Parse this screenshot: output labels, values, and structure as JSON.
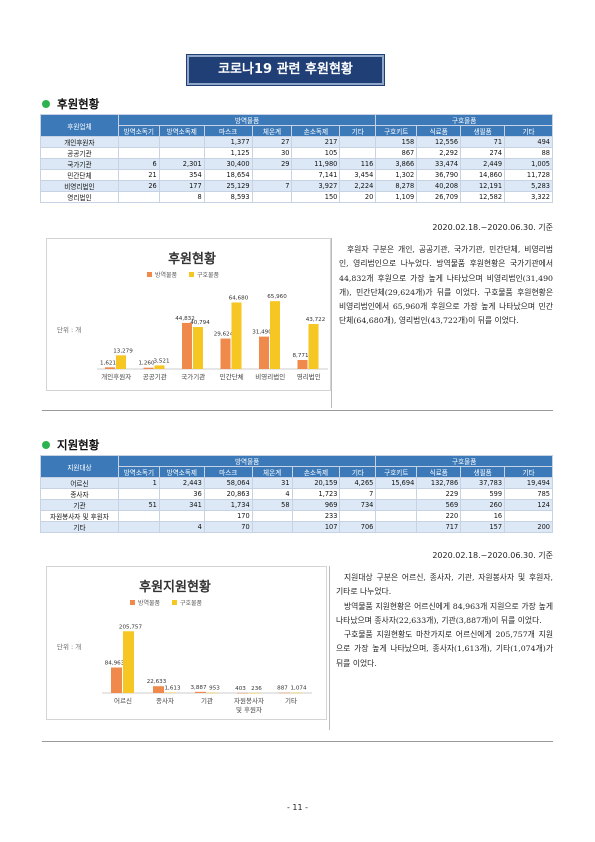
{
  "title": "코로나19 관련 후원현황",
  "sections": [
    {
      "heading": "후원현황",
      "table": {
        "corner": "후원업체",
        "group1": "방역물품",
        "group2": "구호물품",
        "cols": [
          "방역소독기",
          "방역소독제",
          "마스크",
          "체온계",
          "손소독제",
          "기타",
          "구호키트",
          "식료품",
          "생필품",
          "기타"
        ],
        "rows": [
          {
            "label": "개인후원자",
            "cells": [
              "",
              "",
              "1,377",
              "27",
              "217",
              "",
              "158",
              "12,556",
              "71",
              "494"
            ]
          },
          {
            "label": "공공기관",
            "cells": [
              "",
              "",
              "1,125",
              "30",
              "105",
              "",
              "867",
              "2,292",
              "274",
              "88"
            ]
          },
          {
            "label": "국가기관",
            "cells": [
              "6",
              "2,301",
              "30,400",
              "29",
              "11,980",
              "116",
              "3,866",
              "33,474",
              "2,449",
              "1,005"
            ]
          },
          {
            "label": "민간단체",
            "cells": [
              "21",
              "354",
              "18,654",
              "",
              "7,141",
              "3,454",
              "1,302",
              "36,790",
              "14,860",
              "11,728"
            ]
          },
          {
            "label": "비영리법인",
            "cells": [
              "26",
              "177",
              "25,129",
              "7",
              "3,927",
              "2,224",
              "8,278",
              "40,208",
              "12,191",
              "5,283"
            ]
          },
          {
            "label": "영리법인",
            "cells": [
              "",
              "8",
              "8,593",
              "",
              "150",
              "20",
              "1,109",
              "26,709",
              "12,582",
              "3,322"
            ]
          }
        ]
      },
      "base_date": "2020.02.18.~2020.06.30. 기준",
      "description": [
        "후원자 구분은 개인, 공공기관, 국가기관, 민간단체, 비영리법인, 영리법인으로 나누었다. 방역물품 후원현황은 국가기관에서 44,832개 후원으로 가장 높게 나타났으며 비영리법인(31,490개), 민간단체(29,624개)가 뒤를 이었다. 구호물품 후원현황은 비영리법인에서 65,960개 후원으로 가장 높게 나타났으며 민간단체(64,680개), 영리법인(43,722개)이 뒤를 이었다."
      ]
    },
    {
      "heading": "지원현황",
      "table": {
        "corner": "지원대상",
        "group1": "방역물품",
        "group2": "구호물품",
        "cols": [
          "방역소독기",
          "방역소독제",
          "마스크",
          "체온계",
          "손소독제",
          "기타",
          "구호키트",
          "식료품",
          "생필품",
          "기타"
        ],
        "rows": [
          {
            "label": "어르신",
            "cells": [
              "1",
              "2,443",
              "58,064",
              "31",
              "20,159",
              "4,265",
              "15,694",
              "132,786",
              "37,783",
              "19,494"
            ]
          },
          {
            "label": "종사자",
            "cells": [
              "",
              "36",
              "20,863",
              "4",
              "1,723",
              "7",
              "",
              "229",
              "599",
              "785"
            ]
          },
          {
            "label": "기관",
            "cells": [
              "51",
              "341",
              "1,734",
              "58",
              "969",
              "734",
              "",
              "569",
              "260",
              "124"
            ]
          },
          {
            "label": "자원봉사자 및 후원자",
            "cells": [
              "",
              "",
              "170",
              "",
              "233",
              "",
              "",
              "220",
              "16",
              ""
            ]
          },
          {
            "label": "기타",
            "cells": [
              "",
              "4",
              "70",
              "",
              "107",
              "706",
              "",
              "717",
              "157",
              "200"
            ]
          }
        ]
      },
      "base_date": "2020.02.18.~2020.06.30. 기준",
      "description": [
        "지원대상 구분은 어르신, 종사자, 기관, 자원봉사자 및 후원자, 기타로 나누었다.",
        "방역물품 지원현황은 어르신에게 84,963개 지원으로 가장 높게 나타났으며 종사자(22,633개), 기관(3,887개)이 뒤를 이었다.",
        "구호물품 지원현황도 마찬가지로 어르신에게 205,757개 지원으로 가장 높게 나타났으며, 종사자(1,613개), 기타(1,074개)가 뒤를 이었다."
      ]
    }
  ],
  "chart_data": [
    {
      "type": "bar",
      "title": "후원현황",
      "ylabel": "단위 : 개",
      "categories": [
        "개인후원자",
        "공공기관",
        "국가기관",
        "민간단체",
        "비영리법인",
        "영리법인"
      ],
      "series": [
        {
          "name": "방역물품",
          "values": [
            1621,
            1260,
            44832,
            29624,
            31490,
            8771
          ],
          "labels": [
            "1,621",
            "1,260",
            "44,832",
            "29,624",
            "31,490",
            "8,771"
          ],
          "color": "#ef8a4c"
        },
        {
          "name": "구호물품",
          "values": [
            13279,
            3521,
            40794,
            64680,
            65960,
            43722
          ],
          "labels": [
            "13,279",
            "3,521",
            "40,794",
            "64,680",
            "65,960",
            "43,722"
          ],
          "color": "#f6c623"
        }
      ],
      "ylim": [
        0,
        70000
      ]
    },
    {
      "type": "bar",
      "title": "후원지원현황",
      "ylabel": "단위 : 개",
      "categories": [
        "어르신",
        "종사자",
        "기관",
        "자원봉사자|및 후원자",
        "기타"
      ],
      "series": [
        {
          "name": "방역물품",
          "values": [
            84963,
            22633,
            3887,
            403,
            887
          ],
          "labels": [
            "84,963",
            "22,633",
            "3,887",
            "403",
            "887"
          ],
          "color": "#ef8a4c"
        },
        {
          "name": "구호물품",
          "values": [
            205757,
            1613,
            953,
            236,
            1074
          ],
          "labels": [
            "205,757",
            "1,613",
            "953",
            "236",
            "1,074"
          ],
          "color": "#f6c623"
        }
      ],
      "ylim": [
        0,
        230000
      ]
    }
  ],
  "page_number": "- 11 -"
}
